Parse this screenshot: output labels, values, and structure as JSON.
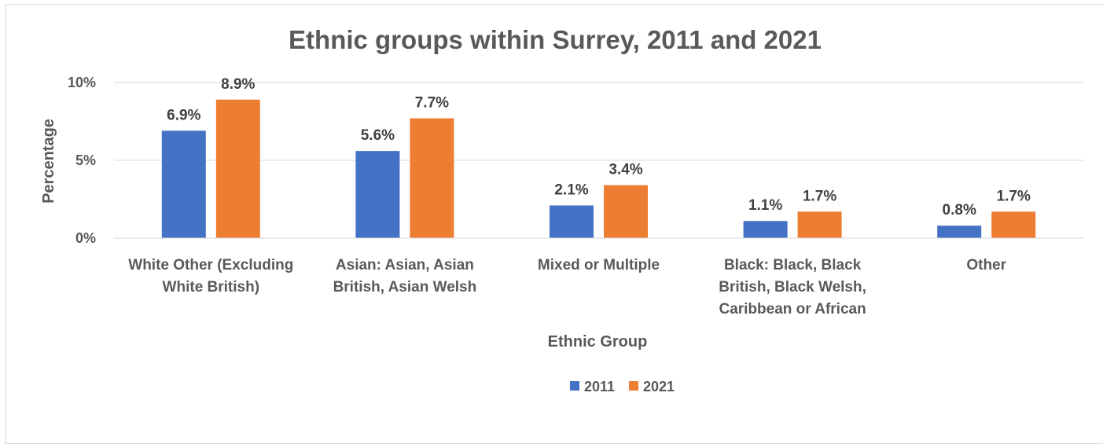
{
  "chart_data": {
    "type": "bar",
    "title": "Ethnic groups within Surrey, 2011 and 2021",
    "xlabel": "Ethnic Group",
    "ylabel": "Percentage",
    "categories": [
      [
        "White Other (Excluding",
        "White British)"
      ],
      [
        "Asian: Asian, Asian",
        "British, Asian Welsh"
      ],
      [
        "Mixed or Multiple"
      ],
      [
        "Black: Black, Black",
        "British, Black Welsh,",
        "Caribbean or African"
      ],
      [
        "Other"
      ]
    ],
    "series": [
      {
        "name": "2011",
        "color": "#4472c4",
        "values": [
          6.9,
          5.6,
          2.1,
          1.1,
          0.8
        ],
        "labels": [
          "6.9%",
          "5.6%",
          "2.1%",
          "1.1%",
          "0.8%"
        ]
      },
      {
        "name": "2021",
        "color": "#ed7d31",
        "values": [
          8.9,
          7.7,
          3.4,
          1.7,
          1.7
        ],
        "labels": [
          "8.9%",
          "7.7%",
          "3.4%",
          "1.7%",
          "1.7%"
        ]
      }
    ],
    "ylim": [
      0,
      10
    ],
    "yticks": [
      0,
      5,
      10
    ],
    "ytick_labels": [
      "0%",
      "5%",
      "10%"
    ],
    "grid": true,
    "legend": "bottom"
  }
}
